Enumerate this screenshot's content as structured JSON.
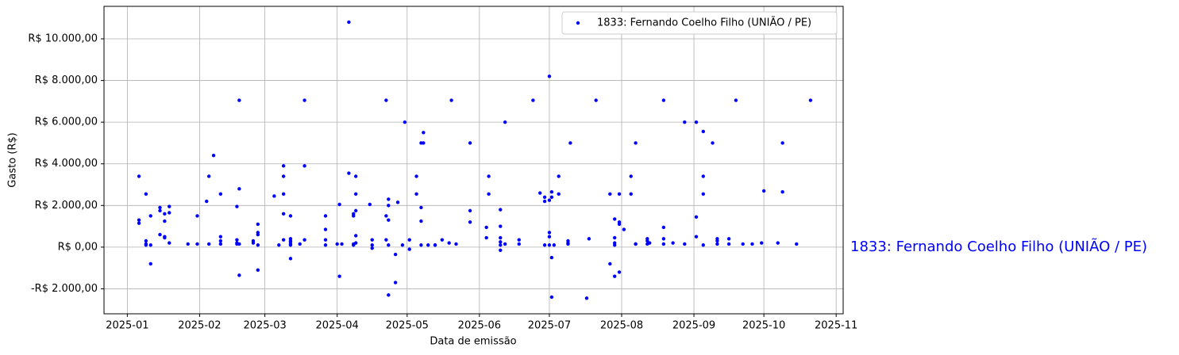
{
  "chart_data": {
    "type": "scatter",
    "xlabel": "Data de emissão",
    "ylabel": "Gasto (R$)",
    "annotation": "1833: Fernando Coelho Filho (UNIÃO / PE)",
    "grid": true,
    "legend": "upper right",
    "xlim": [
      "2024-12-22",
      "2025-11-04"
    ],
    "ylim": [
      -3200,
      11560
    ],
    "xticks": [
      {
        "value": "2025-01-01",
        "label": "2025-01"
      },
      {
        "value": "2025-02-01",
        "label": "2025-02"
      },
      {
        "value": "2025-03-01",
        "label": "2025-03"
      },
      {
        "value": "2025-04-01",
        "label": "2025-04"
      },
      {
        "value": "2025-05-01",
        "label": "2025-05"
      },
      {
        "value": "2025-06-01",
        "label": "2025-06"
      },
      {
        "value": "2025-07-01",
        "label": "2025-07"
      },
      {
        "value": "2025-08-01",
        "label": "2025-08"
      },
      {
        "value": "2025-09-01",
        "label": "2025-09"
      },
      {
        "value": "2025-10-01",
        "label": "2025-10"
      },
      {
        "value": "2025-11-01",
        "label": "2025-11"
      }
    ],
    "yticks": [
      {
        "value": -2000,
        "label": "-R$ 2.000,00"
      },
      {
        "value": 0,
        "label": "R$ 0,00"
      },
      {
        "value": 2000,
        "label": "R$ 2.000,00"
      },
      {
        "value": 4000,
        "label": "R$ 4.000,00"
      },
      {
        "value": 6000,
        "label": "R$ 6.000,00"
      },
      {
        "value": 8000,
        "label": "R$ 8.000,00"
      },
      {
        "value": 10000,
        "label": "R$ 10.000,00"
      }
    ],
    "series": [
      {
        "name": "1833: Fernando Coelho Filho (UNIÃO / PE)",
        "color": "#0000ff",
        "x": [
          "2025-01-06",
          "2025-01-06",
          "2025-01-06",
          "2025-01-09",
          "2025-01-09",
          "2025-01-09",
          "2025-01-09",
          "2025-01-11",
          "2025-01-11",
          "2025-01-11",
          "2025-01-15",
          "2025-01-15",
          "2025-01-15",
          "2025-01-17",
          "2025-01-17",
          "2025-01-17",
          "2025-01-17",
          "2025-01-19",
          "2025-01-19",
          "2025-01-19",
          "2025-01-27",
          "2025-01-31",
          "2025-01-31",
          "2025-02-04",
          "2025-02-05",
          "2025-02-05",
          "2025-02-07",
          "2025-02-10",
          "2025-02-10",
          "2025-02-10",
          "2025-02-10",
          "2025-02-17",
          "2025-02-17",
          "2025-02-17",
          "2025-02-17",
          "2025-02-18",
          "2025-02-18",
          "2025-02-18",
          "2025-02-18",
          "2025-02-24",
          "2025-02-24",
          "2025-02-26",
          "2025-02-26",
          "2025-02-26",
          "2025-02-26",
          "2025-02-26",
          "2025-03-05",
          "2025-03-07",
          "2025-03-09",
          "2025-03-09",
          "2025-03-09",
          "2025-03-09",
          "2025-03-09",
          "2025-03-12",
          "2025-03-12",
          "2025-03-12",
          "2025-03-12",
          "2025-03-12",
          "2025-03-12",
          "2025-03-12",
          "2025-03-16",
          "2025-03-18",
          "2025-03-18",
          "2025-03-18",
          "2025-03-27",
          "2025-03-27",
          "2025-03-27",
          "2025-03-27",
          "2025-04-01",
          "2025-04-02",
          "2025-04-02",
          "2025-04-03",
          "2025-04-06",
          "2025-04-06",
          "2025-04-08",
          "2025-04-08",
          "2025-04-08",
          "2025-04-08",
          "2025-04-09",
          "2025-04-09",
          "2025-04-09",
          "2025-04-09",
          "2025-04-09",
          "2025-04-15",
          "2025-04-16",
          "2025-04-16",
          "2025-04-16",
          "2025-04-22",
          "2025-04-22",
          "2025-04-22",
          "2025-04-23",
          "2025-04-23",
          "2025-04-23",
          "2025-04-23",
          "2025-04-23",
          "2025-04-26",
          "2025-04-26",
          "2025-04-27",
          "2025-04-29",
          "2025-04-30",
          "2025-05-02",
          "2025-05-02",
          "2025-05-05",
          "2025-05-05",
          "2025-05-07",
          "2025-05-07",
          "2025-05-07",
          "2025-05-07",
          "2025-05-08",
          "2025-05-08",
          "2025-05-10",
          "2025-05-13",
          "2025-05-13",
          "2025-05-16",
          "2025-05-19",
          "2025-05-20",
          "2025-05-22",
          "2025-05-28",
          "2025-05-28",
          "2025-05-28",
          "2025-06-04",
          "2025-06-04",
          "2025-06-05",
          "2025-06-05",
          "2025-06-10",
          "2025-06-10",
          "2025-06-10",
          "2025-06-10",
          "2025-06-10",
          "2025-06-10",
          "2025-06-12",
          "2025-06-12",
          "2025-06-18",
          "2025-06-18",
          "2025-06-24",
          "2025-06-27",
          "2025-06-29",
          "2025-06-29",
          "2025-06-29",
          "2025-07-01",
          "2025-07-01",
          "2025-07-01",
          "2025-07-01",
          "2025-07-01",
          "2025-07-02",
          "2025-07-02",
          "2025-07-02",
          "2025-07-02",
          "2025-07-03",
          "2025-07-05",
          "2025-07-05",
          "2025-07-09",
          "2025-07-09",
          "2025-07-09",
          "2025-07-10",
          "2025-07-17",
          "2025-07-18",
          "2025-07-21",
          "2025-07-27",
          "2025-07-27",
          "2025-07-29",
          "2025-07-29",
          "2025-07-29",
          "2025-07-29",
          "2025-07-29",
          "2025-07-31",
          "2025-07-31",
          "2025-07-31",
          "2025-07-31",
          "2025-08-02",
          "2025-08-05",
          "2025-08-05",
          "2025-08-07",
          "2025-08-07",
          "2025-08-07",
          "2025-08-12",
          "2025-08-12",
          "2025-08-12",
          "2025-08-13",
          "2025-08-19",
          "2025-08-19",
          "2025-08-19",
          "2025-08-19",
          "2025-08-23",
          "2025-08-28",
          "2025-08-28",
          "2025-09-02",
          "2025-09-02",
          "2025-09-02",
          "2025-09-05",
          "2025-09-05",
          "2025-09-05",
          "2025-09-05",
          "2025-09-09",
          "2025-09-11",
          "2025-09-11",
          "2025-09-11",
          "2025-09-16",
          "2025-09-16",
          "2025-09-19",
          "2025-09-22",
          "2025-09-26",
          "2025-09-30",
          "2025-10-01",
          "2025-10-07",
          "2025-10-09",
          "2025-10-09",
          "2025-10-15",
          "2025-10-21"
        ],
        "values": [
          3400,
          1300,
          1150,
          2550,
          300,
          150,
          100,
          1500,
          -800,
          100,
          1900,
          1750,
          600,
          1600,
          1250,
          500,
          450,
          1650,
          1950,
          200,
          150,
          1500,
          150,
          2200,
          3400,
          150,
          4400,
          2550,
          500,
          300,
          150,
          1950,
          200,
          150,
          350,
          2800,
          7050,
          -1350,
          150,
          200,
          300,
          1100,
          700,
          600,
          100,
          -1100,
          2450,
          100,
          3400,
          2550,
          350,
          3900,
          1600,
          1500,
          400,
          250,
          100,
          150,
          -550,
          300,
          150,
          3900,
          7050,
          350,
          1500,
          850,
          350,
          100,
          150,
          2050,
          -1400,
          150,
          10800,
          3550,
          1500,
          1600,
          150,
          100,
          1750,
          3400,
          2550,
          550,
          200,
          2050,
          100,
          350,
          -50,
          1500,
          7050,
          350,
          2300,
          1300,
          -2300,
          100,
          2000,
          -1700,
          -350,
          2150,
          100,
          6000,
          350,
          -100,
          3400,
          2550,
          1900,
          5000,
          1250,
          100,
          5000,
          5500,
          100,
          100,
          100,
          350,
          200,
          7050,
          150,
          5000,
          1750,
          1200,
          450,
          950,
          3400,
          2550,
          1800,
          450,
          250,
          1000,
          100,
          -150,
          6000,
          150,
          350,
          150,
          7050,
          2600,
          2400,
          2200,
          100,
          8200,
          2250,
          700,
          500,
          100,
          2650,
          2400,
          -500,
          -2400,
          100,
          2550,
          3400,
          150,
          300,
          200,
          5000,
          -2450,
          400,
          7050,
          2550,
          -800,
          1350,
          -1400,
          100,
          450,
          200,
          2550,
          1200,
          1100,
          -1200,
          850,
          3400,
          2550,
          150,
          150,
          5000,
          400,
          150,
          300,
          200,
          7050,
          950,
          400,
          150,
          200,
          6000,
          150,
          6000,
          1450,
          500,
          5550,
          3400,
          2550,
          100,
          5000,
          400,
          300,
          150,
          400,
          150,
          7050,
          150,
          150,
          200,
          2700,
          200,
          5000,
          2650,
          150,
          7050
        ]
      }
    ]
  }
}
